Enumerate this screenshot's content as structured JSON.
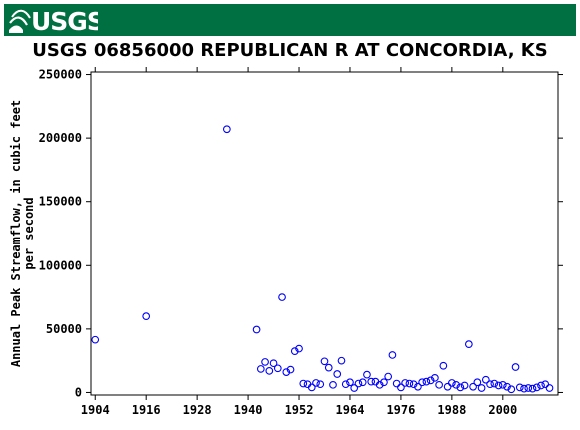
{
  "header": {
    "logo_text": "USGS",
    "brand_color": "#006f41"
  },
  "chart_data": {
    "type": "scatter",
    "title": "USGS 06856000 REPUBLICAN R AT CONCORDIA, KS",
    "ylabel": [
      "Annual Peak Streamflow, in cubic feet",
      "per second"
    ],
    "xlabel": "",
    "xlim": [
      1903,
      2013
    ],
    "ylim": [
      -2000,
      252000
    ],
    "x_ticks": [
      1904,
      1916,
      1928,
      1940,
      1952,
      1964,
      1976,
      1988,
      2000
    ],
    "y_ticks": [
      0,
      50000,
      100000,
      150000,
      200000,
      250000
    ],
    "grid": false,
    "marker": "open-circle",
    "marker_color": "#0000ff",
    "series": [
      {
        "x": [
          1904,
          1916,
          1935,
          1942,
          1943,
          1944,
          1945,
          1946,
          1947,
          1948,
          1949,
          1950,
          1951,
          1952,
          1953,
          1954,
          1955,
          1956,
          1957,
          1958,
          1959,
          1960,
          1961,
          1962,
          1963,
          1964,
          1965,
          1966,
          1967,
          1968,
          1969,
          1970,
          1971,
          1972,
          1973,
          1974,
          1975,
          1976,
          1977,
          1978,
          1979,
          1980,
          1981,
          1982,
          1983,
          1984,
          1985,
          1986,
          1987,
          1988,
          1989,
          1990,
          1991,
          1992,
          1993,
          1994,
          1995,
          1996,
          1997,
          1998,
          1999,
          2000,
          2001,
          2002,
          2003,
          2004,
          2005,
          2006,
          2007,
          2008,
          2009,
          2010,
          2011
        ],
        "y": [
          41500,
          60000,
          207000,
          49500,
          18500,
          24000,
          17000,
          23000,
          19000,
          75000,
          16000,
          18000,
          32500,
          34500,
          7000,
          6500,
          4000,
          7500,
          6500,
          24500,
          19500,
          6000,
          14500,
          25000,
          6500,
          8000,
          3500,
          7000,
          8000,
          14000,
          8500,
          8500,
          6000,
          8000,
          12500,
          29500,
          7000,
          4000,
          7500,
          7000,
          6500,
          4500,
          8000,
          8500,
          9500,
          11500,
          6000,
          21000,
          4500,
          7500,
          6000,
          4000,
          5500,
          38000,
          4500,
          8000,
          3500,
          10000,
          6500,
          7000,
          5500,
          6000,
          4500,
          2500,
          20000,
          4000,
          3000,
          3500,
          3000,
          4000,
          5500,
          6500,
          3500
        ]
      }
    ]
  }
}
